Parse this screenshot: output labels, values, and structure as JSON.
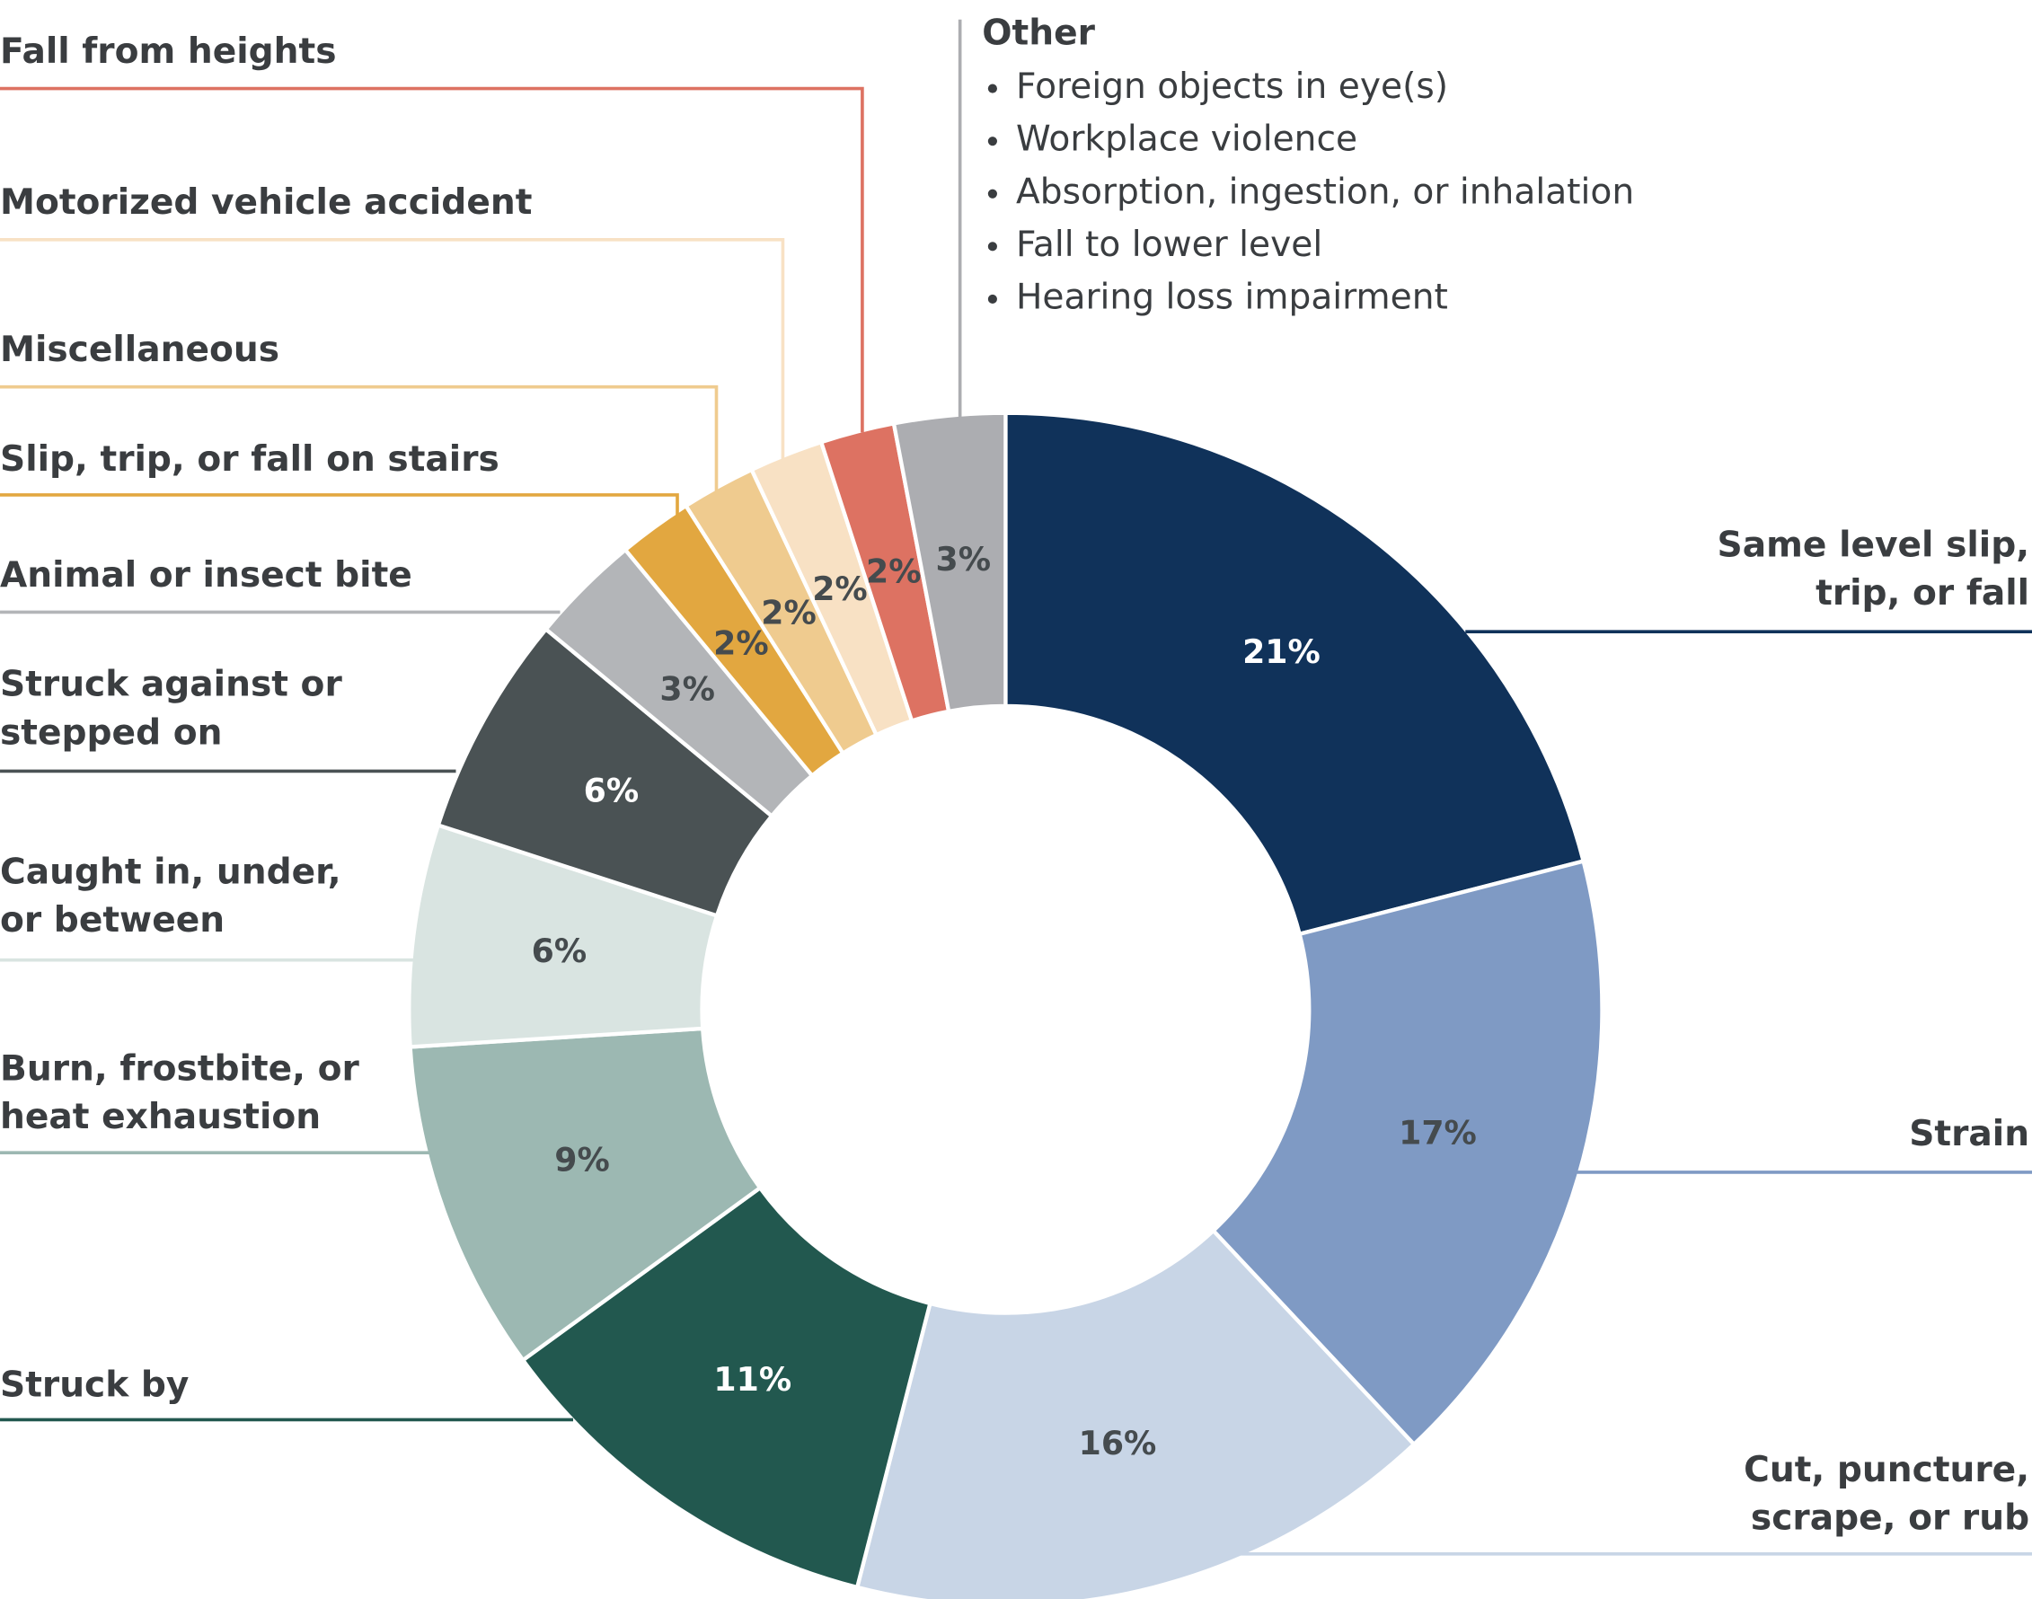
{
  "chart_data": {
    "type": "donut",
    "categories": [
      [
        "Same level slip,",
        "trip, or fall"
      ],
      [
        "Strain"
      ],
      [
        "Cut, puncture,",
        "scrape, or rub"
      ],
      [
        "Struck by"
      ],
      [
        "Burn, frostbite, or",
        "heat exhaustion"
      ],
      [
        "Caught in, under,",
        "or between"
      ],
      [
        "Struck against or",
        "stepped on"
      ],
      [
        "Animal or insect bite"
      ],
      [
        "Slip, trip, or fall on stairs"
      ],
      [
        "Miscellaneous"
      ],
      [
        "Motorized vehicle accident"
      ],
      [
        "Fall from heights"
      ],
      [
        "Other"
      ]
    ],
    "values": [
      21,
      17,
      16,
      11,
      9,
      6,
      6,
      3,
      2,
      2,
      2,
      2,
      3
    ],
    "value_labels": [
      "21%",
      "17%",
      "16%",
      "11%",
      "9%",
      "6%",
      "6%",
      "3%",
      "2%",
      "2%",
      "2%",
      "2%",
      "3%"
    ],
    "colors": [
      "#10325a",
      "#7f9ac4",
      "#c8d5e6",
      "#22584f",
      "#9cb8b2",
      "#d9e4e1",
      "#4a5254",
      "#b3b5b8",
      "#e2a740",
      "#efcb8f",
      "#f8e1c4",
      "#dd7262",
      "#acadb1"
    ],
    "other_items": [
      "Foreign objects in eye(s)",
      "Workplace violence",
      "Absorption, ingestion, or inhalation",
      "Fall to lower level",
      "Hearing loss impairment"
    ]
  }
}
